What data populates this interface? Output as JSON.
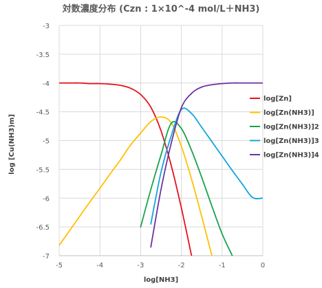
{
  "chart_data": {
    "type": "line",
    "title": "対数濃度分布 (Czn : 1×10^-4 mol/L＋NH3)",
    "xlabel": "log[NH3]",
    "ylabel": "log [Cu(NH3)m]",
    "xlim": [
      -5,
      0
    ],
    "ylim": [
      -7,
      -3
    ],
    "x_ticks": [
      "-5",
      "-4",
      "-3",
      "-2",
      "-1",
      "0"
    ],
    "y_ticks": [
      "-3",
      "-3.5",
      "-4",
      "-4.5",
      "-5",
      "-5.5",
      "-6",
      "-6.5",
      "-7"
    ],
    "grid": true,
    "legend": "right",
    "x": [
      -5.0,
      -4.75,
      -4.5,
      -4.25,
      -4.0,
      -3.75,
      -3.5,
      -3.25,
      -3.0,
      -2.75,
      -2.5,
      -2.25,
      -2.0,
      -1.75,
      -1.5,
      -1.25,
      -1.0,
      -0.75,
      -0.5,
      -0.25,
      0.0
    ],
    "series": [
      {
        "name": "log[Zn]",
        "color": "#e8101b",
        "values": [
          -4.0,
          -4.0,
          -4.0,
          -4.01,
          -4.01,
          -4.02,
          -4.04,
          -4.09,
          -4.2,
          -4.42,
          -4.83,
          -5.43,
          -6.17,
          -7.0,
          null,
          null,
          null,
          null,
          null,
          null,
          null
        ]
      },
      {
        "name": "log[Zn(NH3)]",
        "color": "#ffc000",
        "values": [
          -6.82,
          -6.57,
          -6.32,
          -6.07,
          -5.83,
          -5.58,
          -5.34,
          -5.08,
          -4.87,
          -4.67,
          -4.59,
          -4.69,
          -5.1,
          -5.67,
          -6.32,
          -7.0,
          null,
          null,
          null,
          null,
          null
        ]
      },
      {
        "name": "log[Zn(NH3)]2",
        "color": "#16a34a",
        "values": [
          null,
          null,
          null,
          null,
          null,
          null,
          null,
          null,
          -6.5,
          -5.85,
          -5.25,
          -4.7,
          -4.79,
          -5.17,
          -5.64,
          -6.14,
          -6.62,
          -7.0,
          null,
          null,
          null
        ]
      },
      {
        "name": "log[Zn(NH3)]3",
        "color": "#0ea5e0",
        "values": [
          null,
          null,
          null,
          null,
          null,
          null,
          null,
          null,
          null,
          -6.45,
          -5.55,
          -4.92,
          -4.46,
          -4.53,
          -4.77,
          -5.02,
          -5.27,
          -5.52,
          -5.76,
          -5.99,
          -6.0
        ]
      },
      {
        "name": "log[Zn(NH3)]4",
        "color": "#7030a0",
        "values": [
          null,
          null,
          null,
          null,
          null,
          null,
          null,
          null,
          null,
          -6.85,
          -5.85,
          -5.05,
          -4.43,
          -4.18,
          -4.07,
          -4.03,
          -4.01,
          -4.0,
          -4.0,
          -4.0,
          -4.0
        ]
      }
    ]
  }
}
